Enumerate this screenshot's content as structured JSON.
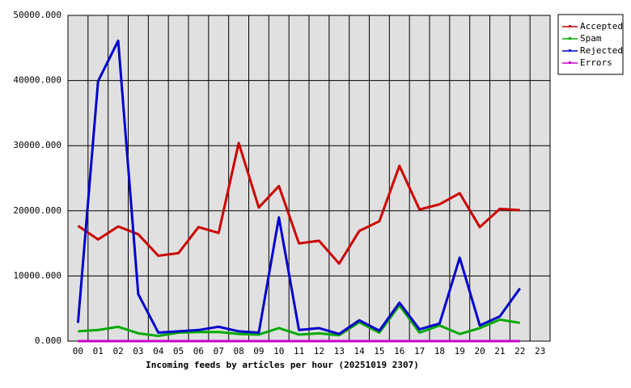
{
  "chart_data": {
    "type": "line",
    "x_label": "Incoming feeds by articles per hour (20251019 2307)",
    "categories": [
      "00",
      "01",
      "02",
      "03",
      "04",
      "05",
      "06",
      "07",
      "08",
      "09",
      "10",
      "11",
      "12",
      "13",
      "14",
      "15",
      "16",
      "17",
      "18",
      "19",
      "20",
      "21",
      "22",
      "23"
    ],
    "series": [
      {
        "name": "Accepted",
        "color": "#cc0000",
        "values": [
          17700,
          15600,
          17600,
          16400,
          13100,
          13500,
          17500,
          16600,
          30400,
          20500,
          23800,
          15000,
          15400,
          11900,
          16900,
          18400,
          26900,
          20200,
          21000,
          22700,
          17500,
          20300,
          20100,
          null
        ]
      },
      {
        "name": "Spam",
        "color": "#00aa00",
        "values": [
          1500,
          1700,
          2200,
          1200,
          800,
          1300,
          1400,
          1400,
          1100,
          1000,
          2000,
          1000,
          1200,
          900,
          2900,
          1300,
          5500,
          1300,
          2400,
          1100,
          2000,
          3300,
          2800,
          null
        ]
      },
      {
        "name": "Rejected",
        "color": "#0000cc",
        "values": [
          2800,
          39900,
          46100,
          7200,
          1300,
          1500,
          1700,
          2200,
          1500,
          1300,
          19000,
          1700,
          2000,
          1100,
          3200,
          1600,
          5900,
          1800,
          2700,
          12800,
          2400,
          3800,
          8100,
          null
        ]
      },
      {
        "name": "Errors",
        "color": "#cc00cc",
        "values": [
          0,
          0,
          0,
          0,
          0,
          0,
          0,
          0,
          0,
          0,
          0,
          0,
          0,
          0,
          0,
          0,
          0,
          0,
          0,
          0,
          0,
          0,
          0,
          null
        ]
      }
    ],
    "ylim": [
      0,
      50000
    ],
    "yticks": [
      {
        "value": 0,
        "label": "0.000"
      },
      {
        "value": 10000,
        "label": "10000.000"
      },
      {
        "value": 20000,
        "label": "20000.000"
      },
      {
        "value": 30000,
        "label": "30000.000"
      },
      {
        "value": 40000,
        "label": "40000.000"
      },
      {
        "value": 50000,
        "label": "50000.000"
      }
    ],
    "grid": true,
    "legend": "top-right"
  }
}
